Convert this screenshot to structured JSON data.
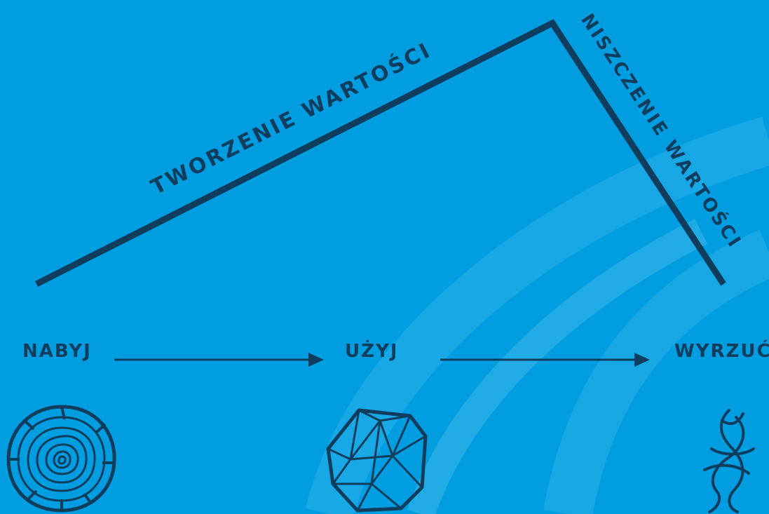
{
  "diagram": {
    "value_creation_label": "TWORZENIE WARTOŚCI",
    "value_destruction_label": "NISZCZENIE WARTOŚCI",
    "steps": [
      {
        "label": "NABYJ",
        "icon": "tree-rings-icon"
      },
      {
        "label": "UŻYJ",
        "icon": "crystal-polyhedron-icon"
      },
      {
        "label": "WYRZUĆ",
        "icon": "tangled-strands-icon"
      }
    ],
    "colors": {
      "background": "#009ee0",
      "ink": "#0f3d5e",
      "decorative_arcs": "#35b3e6"
    }
  }
}
